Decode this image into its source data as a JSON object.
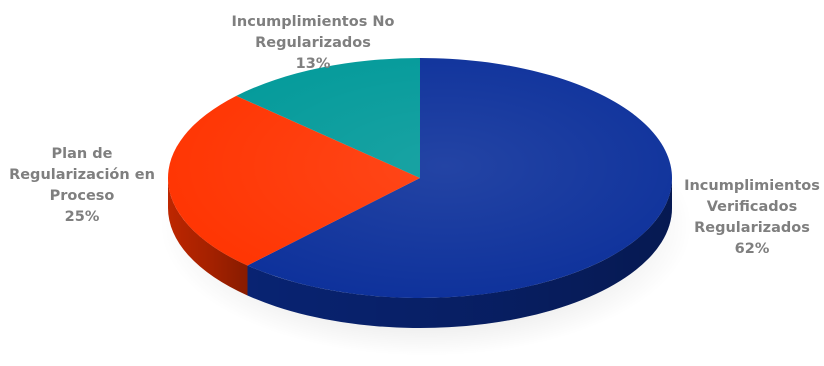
{
  "chart_data": {
    "type": "pie",
    "title": "",
    "slices": [
      {
        "label_lines": [
          "Incumplimientos",
          "Verificados",
          "Regularizados"
        ],
        "percent_label": "62%",
        "value": 62,
        "color": "#0b2f9a"
      },
      {
        "label_lines": [
          "Plan de",
          "Regularización en",
          "Proceso"
        ],
        "percent_label": "25%",
        "value": 25,
        "color": "#ff3300"
      },
      {
        "label_lines": [
          "Incumplimientos No",
          "Regularizados"
        ],
        "percent_label": "13%",
        "value": 13,
        "color": "#009999"
      }
    ],
    "legend": "none",
    "style": "3d-pie"
  }
}
